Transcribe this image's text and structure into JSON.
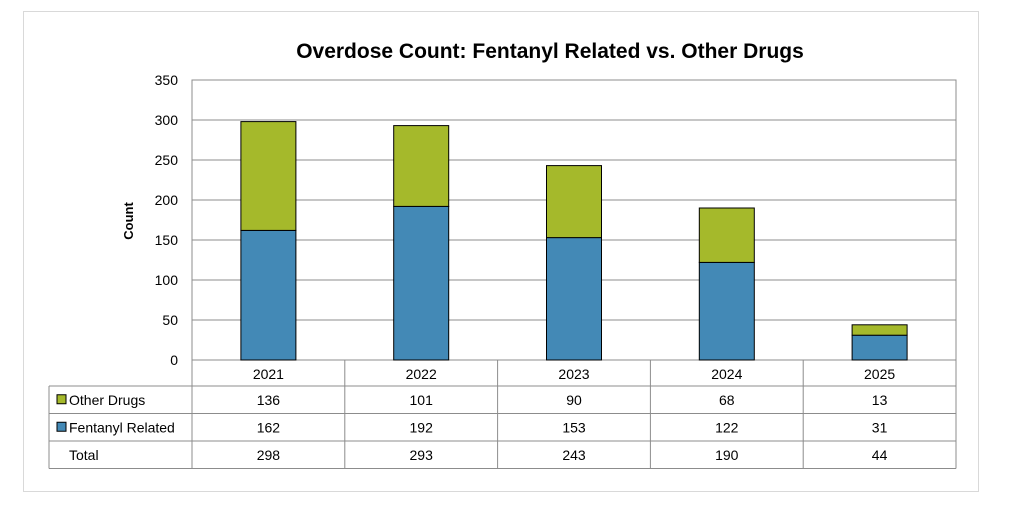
{
  "chart_data": {
    "type": "bar",
    "stacked": true,
    "title": "Overdose Count: Fentanyl Related vs. Other Drugs",
    "ylabel": "Count",
    "xlabel": "",
    "ylim": [
      0,
      350
    ],
    "yticks": [
      0,
      50,
      100,
      150,
      200,
      250,
      300,
      350
    ],
    "grid": true,
    "legend": "data-table-left",
    "categories": [
      "2021",
      "2022",
      "2023",
      "2024",
      "2025"
    ],
    "series": [
      {
        "name": "Fentanyl Related",
        "values": [
          162,
          192,
          153,
          122,
          31
        ],
        "color": "#4389b6"
      },
      {
        "name": "Other Drugs",
        "values": [
          136,
          101,
          90,
          68,
          13
        ],
        "color": "#a5b92b"
      }
    ],
    "table_rows": [
      {
        "label": "Other Drugs",
        "values": [
          136,
          101,
          90,
          68,
          13
        ],
        "swatch": "#a5b92b"
      },
      {
        "label": "Fentanyl Related",
        "values": [
          162,
          192,
          153,
          122,
          31
        ],
        "swatch": "#4389b6"
      },
      {
        "label": "Total",
        "values": [
          298,
          293,
          243,
          190,
          44
        ],
        "swatch": ""
      }
    ]
  }
}
